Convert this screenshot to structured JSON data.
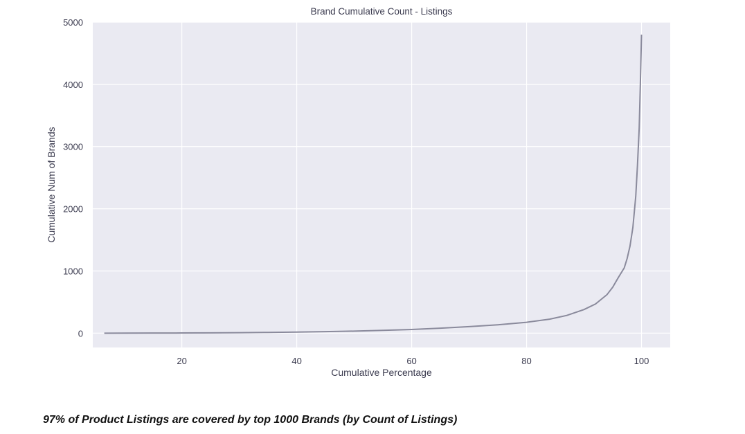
{
  "chart_data": {
    "type": "line",
    "title": "Brand Cumulative Count - Listings",
    "xlabel": "Cumulative Percentage",
    "ylabel": "Cumulative Num of Brands",
    "xlim": [
      4.5,
      105
    ],
    "ylim": [
      -230,
      5000
    ],
    "xticks": [
      20,
      40,
      60,
      80,
      100
    ],
    "yticks": [
      0,
      1000,
      2000,
      3000,
      4000,
      5000
    ],
    "grid": true,
    "legend": "none",
    "line_color": "#8a8a9c",
    "plot_background": "#eaeaf2",
    "series": [
      {
        "x": [
          6.5,
          10,
          15,
          20,
          25,
          30,
          35,
          40,
          45,
          50,
          55,
          60,
          65,
          70,
          75,
          80,
          84,
          87,
          90,
          92,
          94,
          95,
          96,
          97,
          97.5,
          98,
          98.5,
          99,
          99.3,
          99.6,
          99.8,
          100
        ],
        "y": [
          0,
          1,
          2,
          3,
          5,
          8,
          12,
          17,
          24,
          33,
          45,
          60,
          80,
          105,
          135,
          175,
          225,
          285,
          380,
          470,
          620,
          740,
          900,
          1050,
          1200,
          1400,
          1700,
          2200,
          2700,
          3300,
          4000,
          4800
        ]
      }
    ]
  },
  "caption": "97% of Product Listings are covered by top 1000 Brands (by Count of Listings)"
}
